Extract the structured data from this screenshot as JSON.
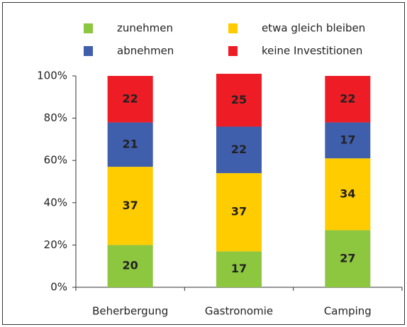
{
  "chart_data": {
    "type": "stacked_bar",
    "categories": [
      "Beherbergung",
      "Gastronomie",
      "Camping"
    ],
    "series": [
      {
        "name": "zunehmen",
        "color": "#8dc63f",
        "values": [
          20,
          17,
          27
        ]
      },
      {
        "name": "etwa gleich bleiben",
        "color": "#ffcc00",
        "values": [
          37,
          37,
          34
        ]
      },
      {
        "name": "abnehmen",
        "color": "#3f5fac",
        "values": [
          21,
          22,
          17
        ]
      },
      {
        "name": "keine Investitionen",
        "color": "#ee1c25",
        "values": [
          22,
          25,
          22
        ]
      }
    ],
    "ylim": [
      0,
      100
    ],
    "yticks": [
      {
        "value": 0,
        "label": "0%"
      },
      {
        "value": 20,
        "label": "20%"
      },
      {
        "value": 40,
        "label": "40%"
      },
      {
        "value": 60,
        "label": "60%"
      },
      {
        "value": 80,
        "label": "80%"
      },
      {
        "value": 100,
        "label": "100%"
      }
    ],
    "grid": false,
    "legend": "top"
  }
}
